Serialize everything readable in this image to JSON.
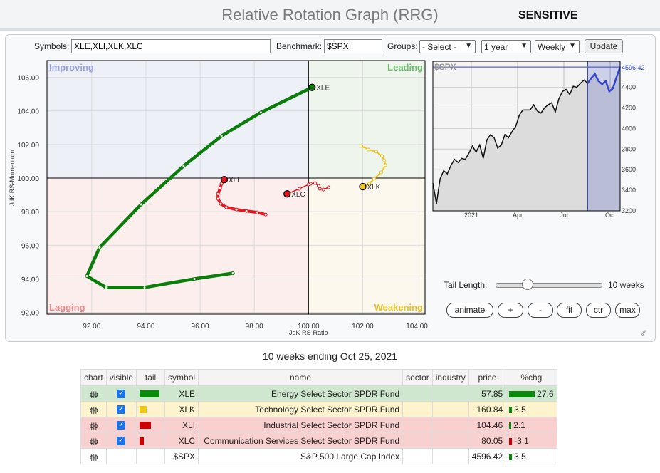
{
  "header": {
    "title": "Relative Rotation Graph (RRG)",
    "mode": "SENSITIVE"
  },
  "controls": {
    "symbols_label": "Symbols:",
    "symbols_value": "XLE,XLI,XLK,XLC",
    "benchmark_label": "Benchmark:",
    "benchmark_value": "$SPX",
    "groups_label": "Groups:",
    "groups_value": "- Select -",
    "period_value": "1 year",
    "interval_value": "Weekly",
    "update_label": "Update"
  },
  "rrg": {
    "xlabel": "JdK RS-Ratio",
    "ylabel": "JdK RS-Momentum",
    "xlim": [
      90.35,
      104.3
    ],
    "ylim": [
      91.9,
      107.0
    ],
    "xticks": [
      "92.00",
      "94.00",
      "96.00",
      "98.00",
      "100.00",
      "102.00",
      "104.00"
    ],
    "yticks": [
      "92.00",
      "94.00",
      "96.00",
      "98.00",
      "100.00",
      "102.00",
      "104.00",
      "106.00"
    ],
    "quadrants": {
      "improving": "Improving",
      "leading": "Leading",
      "lagging": "Lagging",
      "weakening": "Weakening"
    },
    "quadrant_colors": {
      "improving": "#eef0f8",
      "leading": "#edf5ec",
      "lagging": "#fbeeed",
      "weakening": "#fcf8ee"
    },
    "series": [
      {
        "name": "XLE",
        "color": "#0a7d0a",
        "width": 4.5,
        "x": [
          97.21,
          95.79,
          93.95,
          92.53,
          91.82,
          92.29,
          93.82,
          95.39,
          96.79,
          98.24,
          100.13
        ],
        "y": [
          94.34,
          94.0,
          93.49,
          93.49,
          94.17,
          95.87,
          98.43,
          100.72,
          102.51,
          103.91,
          105.4
        ]
      },
      {
        "name": "XLI",
        "color": "#e8141e",
        "width": 4,
        "x": [
          98.42,
          98.11,
          97.71,
          97.34,
          96.97,
          96.76,
          96.66,
          96.66,
          96.74,
          96.79,
          96.89
        ],
        "y": [
          97.83,
          97.96,
          98.04,
          98.13,
          98.26,
          98.47,
          98.77,
          99.06,
          99.4,
          99.66,
          99.91
        ]
      },
      {
        "name": "XLC",
        "color": "#e8141e",
        "width": 1.5,
        "x": [
          100.74,
          100.55,
          100.42,
          100.37,
          100.24,
          100.08,
          100.0,
          99.66,
          99.21
        ],
        "y": [
          99.45,
          99.32,
          99.36,
          99.53,
          99.7,
          99.66,
          99.62,
          99.36,
          99.06
        ]
      },
      {
        "name": "XLK",
        "color": "#f0c419",
        "width": 2,
        "x": [
          101.95,
          102.21,
          102.5,
          102.71,
          102.79,
          102.84,
          102.68,
          102.42,
          102.24,
          102.0
        ],
        "y": [
          101.91,
          101.7,
          101.57,
          101.32,
          101.06,
          100.77,
          100.34,
          99.96,
          99.66,
          99.49
        ]
      }
    ]
  },
  "spx_chart": {
    "label": "$SPX",
    "last_label": "4596.42",
    "ylim": [
      3200,
      4653
    ],
    "yticks": [
      "3200",
      "3400",
      "3600",
      "3800",
      "4000",
      "4200",
      "4400"
    ],
    "xticks": [
      "2021",
      "Apr",
      "Jul",
      "Oct"
    ],
    "values": [
      3470,
      3270,
      3510,
      3590,
      3560,
      3640,
      3700,
      3670,
      3710,
      3700,
      3760,
      3830,
      3770,
      3840,
      3710,
      3890,
      3940,
      3910,
      3810,
      3840,
      3940,
      3910,
      3970,
      4020,
      4130,
      4180,
      4180,
      4180,
      4230,
      4170,
      4150,
      4200,
      4230,
      4250,
      4160,
      4290,
      4360,
      4380,
      4330,
      4410,
      4400,
      4440,
      4470,
      4440,
      4490,
      4530,
      4460,
      4430,
      4460,
      4360,
      4390,
      4500,
      4596.42
    ],
    "highlight_start_index": 43
  },
  "tail": {
    "label": "Tail Length:",
    "value_label": "10 weeks",
    "fraction": 0.3
  },
  "buttons": [
    "animate",
    "+",
    "-",
    "fit",
    "ctr",
    "max"
  ],
  "caption": "10 weeks ending Oct 25, 2021",
  "table": {
    "headers": [
      "chart",
      "visible",
      "tail",
      "symbol",
      "name",
      "sector",
      "industry",
      "price",
      "%chg"
    ],
    "rows": [
      {
        "symbol": "XLE",
        "name": "Energy Select Sector SPDR Fund",
        "price": "57.85",
        "chg": "27.6",
        "bg": "#cfe6cf",
        "tail_color": "#0a8a0a",
        "tail_w": 28,
        "bar_color": "#0a8a0a",
        "bar_w": 36,
        "visible": true
      },
      {
        "symbol": "XLK",
        "name": "Technology Select Sector SPDR Fund",
        "price": "160.84",
        "chg": "3.5",
        "bg": "#fdf3cd",
        "tail_color": "#f0c419",
        "tail_w": 10,
        "bar_color": "#0a8a0a",
        "bar_w": 4,
        "visible": true
      },
      {
        "symbol": "XLI",
        "name": "Industrial Select Sector SPDR Fund",
        "price": "104.46",
        "chg": "2.1",
        "bg": "#f9d0d0",
        "tail_color": "#cc0000",
        "tail_w": 16,
        "bar_color": "#0a8a0a",
        "bar_w": 3,
        "visible": true
      },
      {
        "symbol": "XLC",
        "name": "Communication Services Select Sector SPDR Fund",
        "price": "80.05",
        "chg": "-3.1",
        "bg": "#f9d0d0",
        "tail_color": "#cc0000",
        "tail_w": 6,
        "bar_color": "#cc0000",
        "bar_w": 4,
        "visible": true
      },
      {
        "symbol": "$SPX",
        "name": "S&P 500 Large Cap Index",
        "price": "4596.42",
        "chg": "3.5",
        "bg": "#ffffff",
        "tail_color": "",
        "tail_w": 0,
        "bar_color": "#0a8a0a",
        "bar_w": 4,
        "visible": false
      }
    ]
  }
}
